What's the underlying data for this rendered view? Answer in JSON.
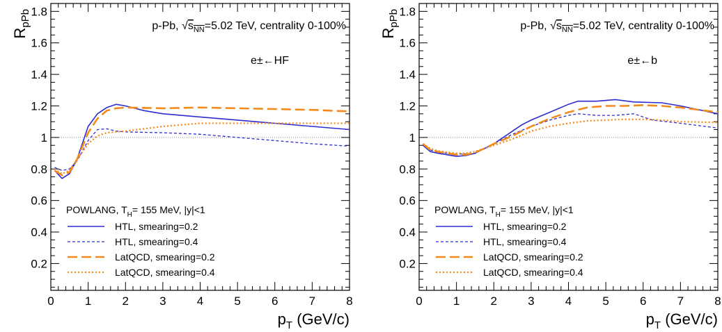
{
  "chart_data": [
    {
      "type": "line",
      "ylabel": "R_pPb",
      "ylabel_main": "R",
      "ylabel_sub": "pPb",
      "xlabel_main": "p",
      "xlabel_sub": "T",
      "xlabel_unit": " (GeV/c)",
      "annotation_system": "p-Pb,",
      "annotation_sqrt_s": "s",
      "annotation_sqrt_sub": "NN",
      "annotation_energy": "=5.02 TeV, centrality 0-100%",
      "particle_label": "e±←HF",
      "legend_header": "POWLANG, T_H= 155 MeV, |y|<1",
      "legend_header_pre": "POWLANG, T",
      "legend_header_sub": "H",
      "legend_header_post": "= 155 MeV, |y|<1",
      "xlim": [
        0,
        8
      ],
      "ylim": [
        0.03,
        1.85
      ],
      "xticks": [
        "0",
        "1",
        "2",
        "3",
        "4",
        "5",
        "6",
        "7",
        "8"
      ],
      "yticks": [
        "0.2",
        "0.4",
        "0.6",
        "0.8",
        "1",
        "1.2",
        "1.4",
        "1.6",
        "1.8"
      ],
      "reference_line": 1,
      "series": [
        {
          "name": "HTL, smearing=0.2",
          "color": "#2b2bd0",
          "dash": "solid",
          "x": [
            0.1,
            0.3,
            0.5,
            0.7,
            1.0,
            1.25,
            1.5,
            1.75,
            2.0,
            2.5,
            3.0,
            4.0,
            5.0,
            6.0,
            7.0,
            8.0
          ],
          "y": [
            0.79,
            0.74,
            0.77,
            0.86,
            1.07,
            1.15,
            1.19,
            1.21,
            1.2,
            1.17,
            1.15,
            1.13,
            1.11,
            1.09,
            1.07,
            1.05
          ]
        },
        {
          "name": "HTL, smearing=0.4",
          "color": "#2b2bd0",
          "dash": "short",
          "x": [
            0.1,
            0.3,
            0.5,
            0.7,
            1.0,
            1.25,
            1.5,
            1.75,
            2.0,
            3.0,
            4.0,
            5.0,
            6.0,
            7.0,
            8.0
          ],
          "y": [
            0.81,
            0.79,
            0.8,
            0.85,
            0.98,
            1.05,
            1.055,
            1.04,
            1.035,
            1.03,
            1.02,
            1.0,
            0.98,
            0.96,
            0.945
          ]
        },
        {
          "name": "LatQCD, smearing=0.2",
          "color": "#f28b1c",
          "dash": "long",
          "x": [
            0.1,
            0.3,
            0.5,
            0.7,
            1.0,
            1.25,
            1.5,
            1.75,
            2.0,
            3.0,
            4.0,
            5.0,
            6.0,
            7.0,
            8.0
          ],
          "y": [
            0.79,
            0.76,
            0.78,
            0.86,
            1.03,
            1.12,
            1.17,
            1.185,
            1.19,
            1.185,
            1.19,
            1.185,
            1.18,
            1.175,
            1.165
          ]
        },
        {
          "name": "LatQCD, smearing=0.4",
          "color": "#f28b1c",
          "dash": "dot",
          "x": [
            0.1,
            0.3,
            0.5,
            0.7,
            1.0,
            1.25,
            1.5,
            1.75,
            2.0,
            3.0,
            4.0,
            5.0,
            6.0,
            7.0,
            8.0
          ],
          "y": [
            0.8,
            0.77,
            0.79,
            0.86,
            0.96,
            1.01,
            1.03,
            1.035,
            1.04,
            1.07,
            1.09,
            1.09,
            1.09,
            1.09,
            1.09
          ]
        }
      ]
    },
    {
      "type": "line",
      "ylabel": "R_pPb",
      "ylabel_main": "R",
      "ylabel_sub": "pPb",
      "xlabel_main": "p",
      "xlabel_sub": "T",
      "xlabel_unit": " (GeV/c)",
      "annotation_system": "p-Pb,",
      "annotation_sqrt_s": "s",
      "annotation_sqrt_sub": "NN",
      "annotation_energy": "=5.02 TeV, centrality 0-100%",
      "particle_label": "e±←b",
      "legend_header": "POWLANG, T_H= 155 MeV, |y|<1",
      "legend_header_pre": "POWLANG, T",
      "legend_header_sub": "H",
      "legend_header_post": "= 155 MeV, |y|<1",
      "xlim": [
        0,
        8
      ],
      "ylim": [
        0.03,
        1.85
      ],
      "xticks": [
        "0",
        "1",
        "2",
        "3",
        "4",
        "5",
        "6",
        "7",
        "8"
      ],
      "yticks": [
        "0.2",
        "0.4",
        "0.6",
        "0.8",
        "1",
        "1.2",
        "1.4",
        "1.6",
        "1.8"
      ],
      "reference_line": 1,
      "series": [
        {
          "name": "HTL, smearing=0.2",
          "color": "#2b2bd0",
          "dash": "solid",
          "x": [
            0.1,
            0.3,
            0.5,
            0.75,
            1.0,
            1.25,
            1.5,
            1.75,
            2.0,
            2.5,
            2.75,
            3.0,
            3.5,
            4.0,
            4.25,
            4.75,
            5.25,
            5.75,
            6.5,
            7.0,
            8.0
          ],
          "y": [
            0.95,
            0.91,
            0.9,
            0.89,
            0.88,
            0.885,
            0.9,
            0.93,
            0.96,
            1.04,
            1.08,
            1.11,
            1.16,
            1.21,
            1.23,
            1.23,
            1.24,
            1.225,
            1.22,
            1.2,
            1.15
          ]
        },
        {
          "name": "HTL, smearing=0.4",
          "color": "#2b2bd0",
          "dash": "short",
          "x": [
            0.1,
            0.3,
            0.5,
            0.75,
            1.0,
            1.25,
            1.5,
            1.75,
            2.0,
            2.5,
            3.0,
            3.5,
            4.0,
            4.25,
            4.75,
            5.25,
            5.75,
            6.25,
            7.0,
            8.0
          ],
          "y": [
            0.96,
            0.92,
            0.905,
            0.9,
            0.895,
            0.895,
            0.9,
            0.93,
            0.96,
            1.02,
            1.07,
            1.11,
            1.14,
            1.15,
            1.14,
            1.14,
            1.15,
            1.11,
            1.09,
            1.06
          ]
        },
        {
          "name": "LatQCD, smearing=0.2",
          "color": "#f28b1c",
          "dash": "long",
          "x": [
            0.1,
            0.3,
            0.5,
            0.75,
            1.0,
            1.25,
            1.5,
            1.75,
            2.0,
            2.5,
            3.0,
            3.5,
            4.0,
            4.5,
            5.0,
            5.5,
            6.0,
            6.5,
            7.0,
            8.0
          ],
          "y": [
            0.96,
            0.92,
            0.91,
            0.9,
            0.89,
            0.89,
            0.905,
            0.93,
            0.96,
            1.01,
            1.07,
            1.12,
            1.16,
            1.19,
            1.2,
            1.2,
            1.205,
            1.2,
            1.19,
            1.16
          ]
        },
        {
          "name": "LatQCD, smearing=0.4",
          "color": "#f28b1c",
          "dash": "dot",
          "x": [
            0.1,
            0.3,
            0.5,
            0.75,
            1.0,
            1.25,
            1.5,
            1.75,
            2.0,
            2.5,
            3.0,
            3.5,
            4.0,
            4.5,
            5.0,
            5.5,
            6.0,
            6.5,
            7.0,
            8.0
          ],
          "y": [
            0.96,
            0.93,
            0.915,
            0.905,
            0.9,
            0.9,
            0.91,
            0.93,
            0.95,
            0.99,
            1.04,
            1.07,
            1.09,
            1.105,
            1.11,
            1.115,
            1.115,
            1.11,
            1.1,
            1.095
          ]
        }
      ]
    }
  ]
}
